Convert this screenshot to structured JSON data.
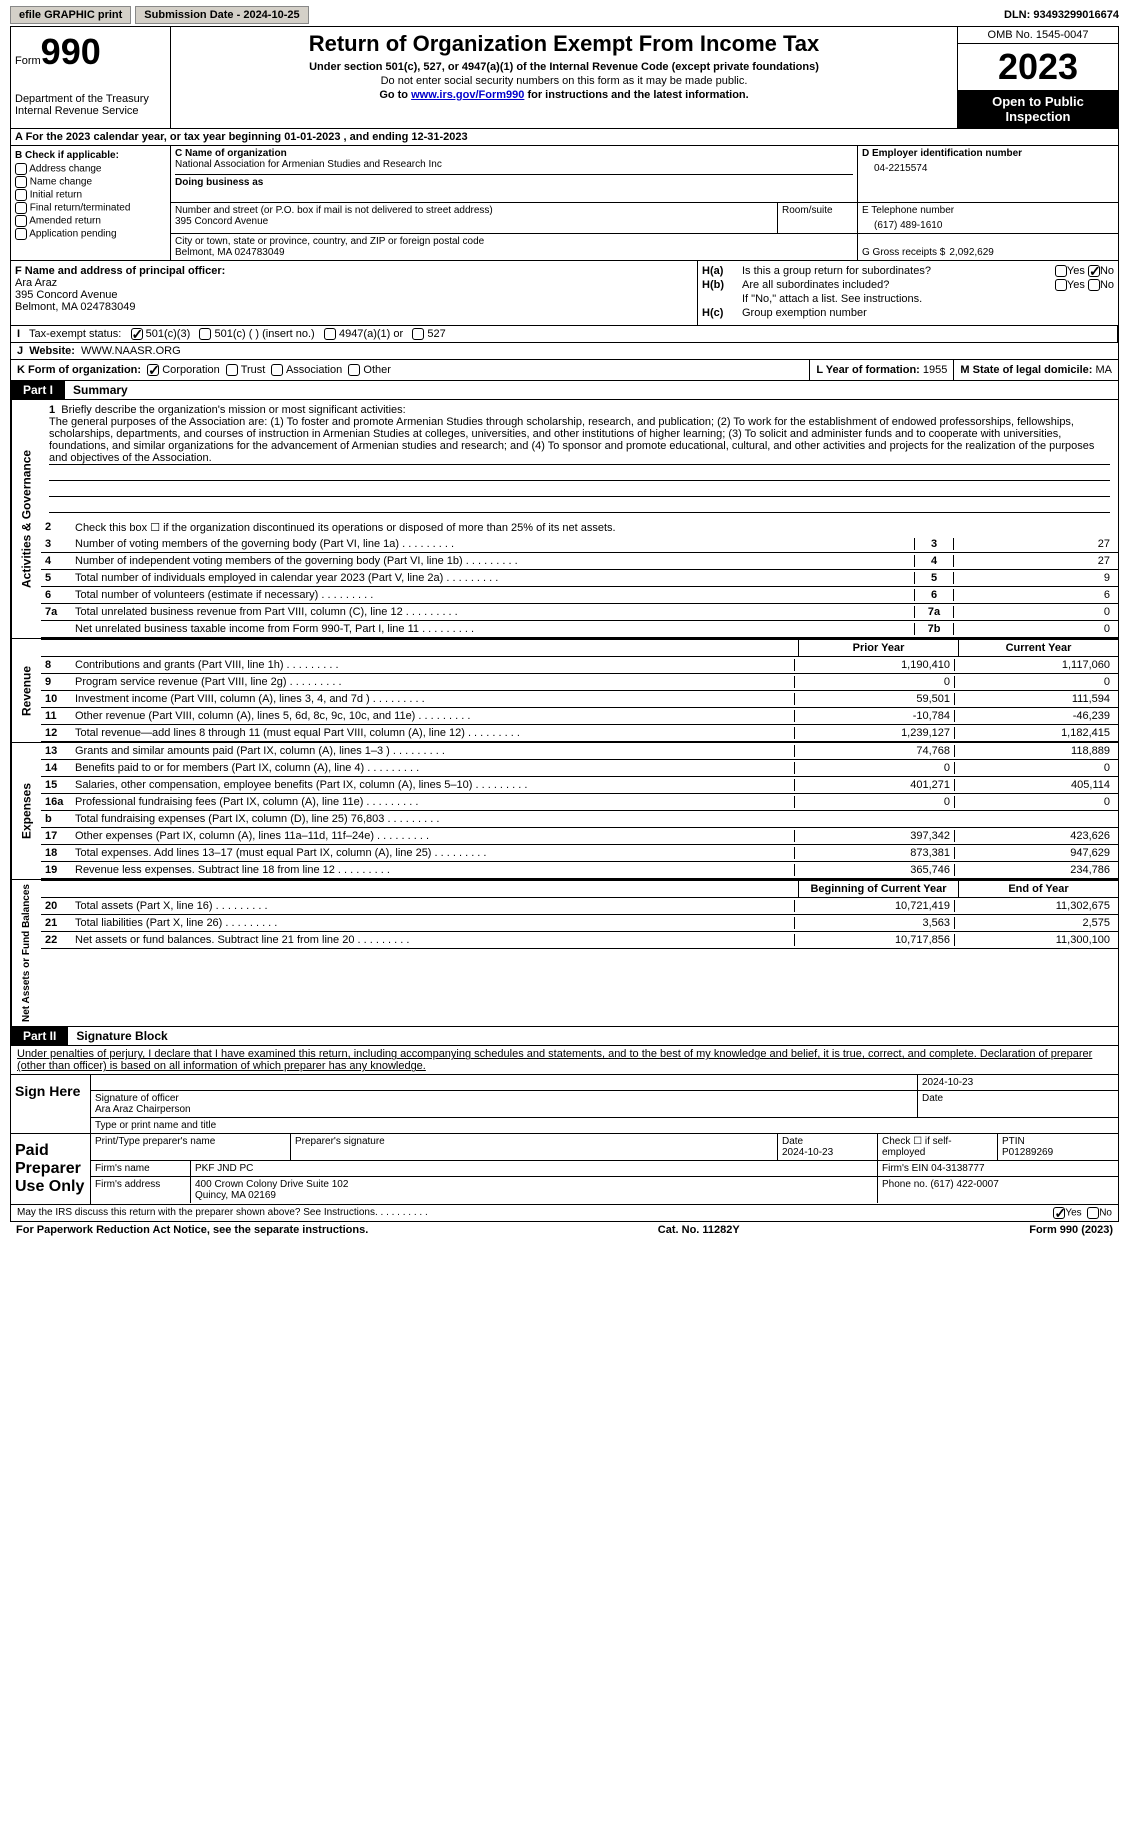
{
  "top_bar": {
    "btn1": "efile GRAPHIC print",
    "btn2_label": "Submission Date -",
    "btn2_value": "2024-10-25",
    "dln_label": "DLN:",
    "dln_value": "93493299016674"
  },
  "header": {
    "form_word": "Form",
    "form_num": "990",
    "dept": "Department of the Treasury",
    "irs": "Internal Revenue Service",
    "title": "Return of Organization Exempt From Income Tax",
    "sub1": "Under section 501(c), 527, or 4947(a)(1) of the Internal Revenue Code (except private foundations)",
    "sub2": "Do not enter social security numbers on this form as it may be made public.",
    "sub3_pre": "Go to ",
    "sub3_link": "www.irs.gov/Form990",
    "sub3_post": " for instructions and the latest information.",
    "omb": "OMB No. 1545-0047",
    "year": "2023",
    "open": "Open to Public Inspection"
  },
  "row_a": {
    "text": "A  For the 2023 calendar year, or tax year beginning 01-01-2023   , and ending 12-31-2023"
  },
  "col_b": {
    "label": "B Check if applicable:",
    "opts": [
      "Address change",
      "Name change",
      "Initial return",
      "Final return/terminated",
      "Amended return",
      "Application pending"
    ]
  },
  "col_c": {
    "name_lbl": "C Name of organization",
    "name": "National Association for Armenian Studies and Research Inc",
    "dba_lbl": "Doing business as",
    "addr_lbl": "Number and street (or P.O. box if mail is not delivered to street address)",
    "addr": "395 Concord Avenue",
    "room_lbl": "Room/suite",
    "city_lbl": "City or town, state or province, country, and ZIP or foreign postal code",
    "city": "Belmont, MA  024783049"
  },
  "col_d": {
    "ein_lbl": "D Employer identification number",
    "ein": "04-2215574",
    "tel_lbl": "E Telephone number",
    "tel": "(617) 489-1610",
    "gross_lbl": "G Gross receipts $",
    "gross": "2,092,629"
  },
  "col_f": {
    "lbl": "F  Name and address of principal officer:",
    "name": "Ara Araz",
    "addr1": "395 Concord Avenue",
    "addr2": "Belmont, MA  024783049"
  },
  "col_h": {
    "ha_lbl": "H(a)",
    "ha_txt": "Is this a group return for subordinates?",
    "ha_no_checked": true,
    "hb_lbl": "H(b)",
    "hb_txt": "Are all subordinates included?",
    "hb_note": "If \"No,\" attach a list. See instructions.",
    "hc_lbl": "H(c)",
    "hc_txt": "Group exemption number"
  },
  "row_i": {
    "lbl": "I",
    "txt": "Tax-exempt status:",
    "opt1": "501(c)(3)",
    "opt2": "501(c) (  ) (insert no.)",
    "opt3": "4947(a)(1) or",
    "opt4": "527"
  },
  "row_j": {
    "lbl": "J",
    "txt": "Website:",
    "val": "WWW.NAASR.ORG"
  },
  "row_k": {
    "lbl": "K Form of organization:",
    "opts": [
      "Corporation",
      "Trust",
      "Association",
      "Other"
    ],
    "l_lbl": "L Year of formation:",
    "l_val": "1955",
    "m_lbl": "M State of legal domicile:",
    "m_val": "MA"
  },
  "part1": {
    "tag": "Part I",
    "title": "Summary"
  },
  "mission": {
    "num": "1",
    "lbl": "Briefly describe the organization's mission or most significant activities:",
    "text": "The general purposes of the Association are: (1) To foster and promote Armenian Studies through scholarship, research, and publication; (2) To work for the establishment of endowed professorships, fellowships, scholarships, departments, and courses of instruction in Armenian Studies at colleges, universities, and other institutions of higher learning; (3) To solicit and administer funds and to cooperate with universities, foundations, and similar organizations for the advancement of Armenian studies and research; and (4) To sponsor and promote educational, cultural, and other activities and projects for the realization of the purposes and objectives of the Association."
  },
  "section_activities": {
    "label": "Activities & Governance",
    "line2": {
      "num": "2",
      "txt": "Check this box  ☐  if the organization discontinued its operations or disposed of more than 25% of its net assets."
    },
    "lines": [
      {
        "num": "3",
        "txt": "Number of voting members of the governing body (Part VI, line 1a)",
        "box": "3",
        "val": "27"
      },
      {
        "num": "4",
        "txt": "Number of independent voting members of the governing body (Part VI, line 1b)",
        "box": "4",
        "val": "27"
      },
      {
        "num": "5",
        "txt": "Total number of individuals employed in calendar year 2023 (Part V, line 2a)",
        "box": "5",
        "val": "9"
      },
      {
        "num": "6",
        "txt": "Total number of volunteers (estimate if necessary)",
        "box": "6",
        "val": "6"
      },
      {
        "num": "7a",
        "txt": "Total unrelated business revenue from Part VIII, column (C), line 12",
        "box": "7a",
        "val": "0"
      },
      {
        "num": "",
        "sub": "b",
        "txt": "Net unrelated business taxable income from Form 990-T, Part I, line 11",
        "box": "7b",
        "val": "0"
      }
    ]
  },
  "two_col_hdr": {
    "c1": "Prior Year",
    "c2": "Current Year"
  },
  "section_revenue": {
    "label": "Revenue",
    "lines": [
      {
        "num": "8",
        "txt": "Contributions and grants (Part VIII, line 1h)",
        "v1": "1,190,410",
        "v2": "1,117,060"
      },
      {
        "num": "9",
        "txt": "Program service revenue (Part VIII, line 2g)",
        "v1": "0",
        "v2": "0"
      },
      {
        "num": "10",
        "txt": "Investment income (Part VIII, column (A), lines 3, 4, and 7d )",
        "v1": "59,501",
        "v2": "111,594"
      },
      {
        "num": "11",
        "txt": "Other revenue (Part VIII, column (A), lines 5, 6d, 8c, 9c, 10c, and 11e)",
        "v1": "-10,784",
        "v2": "-46,239"
      },
      {
        "num": "12",
        "txt": "Total revenue—add lines 8 through 11 (must equal Part VIII, column (A), line 12)",
        "v1": "1,239,127",
        "v2": "1,182,415"
      }
    ]
  },
  "section_expenses": {
    "label": "Expenses",
    "lines": [
      {
        "num": "13",
        "txt": "Grants and similar amounts paid (Part IX, column (A), lines 1–3 )",
        "v1": "74,768",
        "v2": "118,889"
      },
      {
        "num": "14",
        "txt": "Benefits paid to or for members (Part IX, column (A), line 4)",
        "v1": "0",
        "v2": "0"
      },
      {
        "num": "15",
        "txt": "Salaries, other compensation, employee benefits (Part IX, column (A), lines 5–10)",
        "v1": "401,271",
        "v2": "405,114"
      },
      {
        "num": "16a",
        "txt": "Professional fundraising fees (Part IX, column (A), line 11e)",
        "v1": "0",
        "v2": "0"
      },
      {
        "num": "b",
        "txt": "Total fundraising expenses (Part IX, column (D), line 25) 76,803",
        "v1": "",
        "v2": "",
        "grey": true
      },
      {
        "num": "17",
        "txt": "Other expenses (Part IX, column (A), lines 11a–11d, 11f–24e)",
        "v1": "397,342",
        "v2": "423,626"
      },
      {
        "num": "18",
        "txt": "Total expenses. Add lines 13–17 (must equal Part IX, column (A), line 25)",
        "v1": "873,381",
        "v2": "947,629"
      },
      {
        "num": "19",
        "txt": "Revenue less expenses. Subtract line 18 from line 12",
        "v1": "365,746",
        "v2": "234,786"
      }
    ]
  },
  "two_col_hdr2": {
    "c1": "Beginning of Current Year",
    "c2": "End of Year"
  },
  "section_net": {
    "label": "Net Assets or Fund Balances",
    "lines": [
      {
        "num": "20",
        "txt": "Total assets (Part X, line 16)",
        "v1": "10,721,419",
        "v2": "11,302,675"
      },
      {
        "num": "21",
        "txt": "Total liabilities (Part X, line 26)",
        "v1": "3,563",
        "v2": "2,575"
      },
      {
        "num": "22",
        "txt": "Net assets or fund balances. Subtract line 21 from line 20",
        "v1": "10,717,856",
        "v2": "11,300,100"
      }
    ]
  },
  "part2": {
    "tag": "Part II",
    "title": "Signature Block",
    "intro": "Under penalties of perjury, I declare that I have examined this return, including accompanying schedules and statements, and to the best of my knowledge and belief, it is true, correct, and complete. Declaration of preparer (other than officer) is based on all information of which preparer has any knowledge."
  },
  "sign_here": {
    "label": "Sign Here",
    "date": "2024-10-23",
    "sig_lbl": "Signature of officer",
    "name": "Ara Araz  Chairperson",
    "type_lbl": "Type or print name and title",
    "date_lbl": "Date"
  },
  "paid_prep": {
    "label": "Paid Preparer Use Only",
    "print_lbl": "Print/Type preparer's name",
    "sig_lbl": "Preparer's signature",
    "date_lbl": "Date",
    "date": "2024-10-23",
    "check_lbl": "Check ☐ if self-employed",
    "ptin_lbl": "PTIN",
    "ptin": "P01289269",
    "firm_name_lbl": "Firm's name",
    "firm_name": "PKF JND PC",
    "firm_ein_lbl": "Firm's EIN",
    "firm_ein": "04-3138777",
    "firm_addr_lbl": "Firm's address",
    "firm_addr1": "400 Crown Colony Drive Suite 102",
    "firm_addr2": "Quincy, MA  02169",
    "phone_lbl": "Phone no.",
    "phone": "(617) 422-0007"
  },
  "discuss": {
    "txt": "May the IRS discuss this return with the preparer shown above? See Instructions.",
    "yes_checked": true
  },
  "footer": {
    "left": "For Paperwork Reduction Act Notice, see the separate instructions.",
    "mid": "Cat. No. 11282Y",
    "right": "Form 990 (2023)"
  }
}
